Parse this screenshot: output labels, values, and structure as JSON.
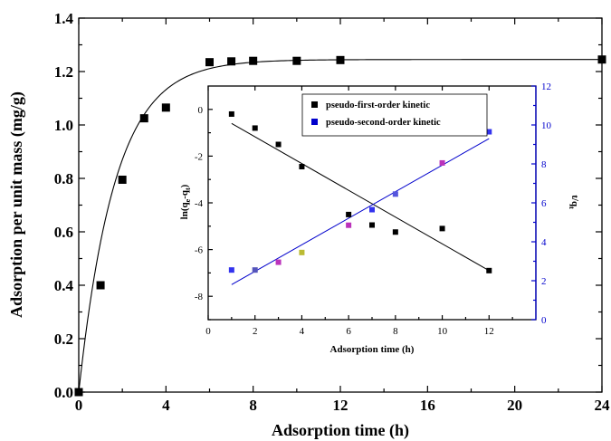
{
  "chart_data": [
    {
      "type": "scatter",
      "xlabel": "Adsorption time (h)",
      "ylabel": "Adsorption per unit mass (mg/g)",
      "xlim": [
        0,
        24
      ],
      "ylim": [
        0,
        1.4
      ],
      "xticks": [
        0,
        4,
        8,
        12,
        16,
        20,
        24
      ],
      "yticks": [
        0.0,
        0.2,
        0.4,
        0.6,
        0.8,
        1.0,
        1.2,
        1.4
      ],
      "xtick_labels": [
        "0",
        "4",
        "8",
        "12",
        "16",
        "20",
        "24"
      ],
      "ytick_labels": [
        "0.0",
        "0.2",
        "0.4",
        "0.6",
        "0.8",
        "1.0",
        "1.2",
        "1.4"
      ],
      "series": [
        {
          "marker": "square",
          "color": "#000000",
          "x": [
            0,
            1,
            2,
            3,
            4,
            6,
            7,
            8,
            10,
            12,
            24
          ],
          "y": [
            0.0,
            0.4,
            0.795,
            1.025,
            1.065,
            1.235,
            1.238,
            1.24,
            1.24,
            1.243,
            1.245
          ]
        }
      ],
      "fit": {
        "qe": 1.245,
        "k": 0.6
      }
    },
    {
      "type": "scatter",
      "xlabel": "Adsorption time (h)",
      "ylabel_left": "ln(qe-qt)",
      "ylabel_right": "t/qt",
      "xlim": [
        0,
        14
      ],
      "ylim_left": [
        -9,
        1
      ],
      "ylim_right": [
        0,
        12
      ],
      "xticks": [
        0,
        2,
        4,
        6,
        8,
        10,
        12
      ],
      "xtick_labels": [
        "0",
        "2",
        "4",
        "6",
        "8",
        "10",
        "12"
      ],
      "yticks_left": [
        0,
        -2,
        -4,
        -6,
        -8
      ],
      "ytick_labels_left": [
        "0",
        "-2",
        "-4",
        "-6",
        "-8"
      ],
      "yticks_right": [
        0,
        2,
        4,
        6,
        8,
        10,
        12
      ],
      "ytick_labels_right": [
        "0",
        "2",
        "4",
        "6",
        "8",
        "10",
        "12"
      ],
      "series": [
        {
          "name": "pseudo-first-order kinetic",
          "axis": "left",
          "color": "#000000",
          "x": [
            1,
            2,
            3,
            4,
            6,
            7,
            8,
            10,
            12
          ],
          "y": [
            -0.2,
            -0.8,
            -1.5,
            -2.45,
            -4.5,
            -4.95,
            -5.25,
            -5.1,
            -6.9
          ],
          "fit": [
            [
              1,
              -0.6
            ],
            [
              12,
              -6.9
            ]
          ]
        },
        {
          "name": "pseudo-second-order kinetic",
          "axis": "right",
          "color": "#0000cc",
          "point_colors": [
            "#3333ee",
            "#5555bb",
            "#bb33bb",
            "#bbbb33",
            "#bb33bb",
            "#3333ee",
            "#5555dd",
            "#bb33bb",
            "#3333ee"
          ],
          "x": [
            1,
            2,
            3,
            4,
            6,
            7,
            8,
            10,
            12
          ],
          "y": [
            2.55,
            2.55,
            2.95,
            3.45,
            4.85,
            5.65,
            6.45,
            8.05,
            9.65
          ],
          "fit": [
            [
              1,
              1.8
            ],
            [
              12,
              9.3
            ]
          ]
        }
      ]
    }
  ]
}
